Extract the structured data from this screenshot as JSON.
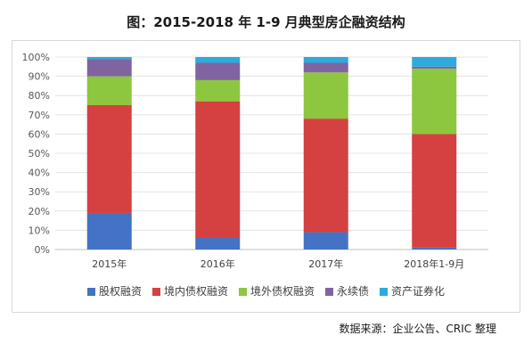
{
  "title": "图：2015-2018 年 1-9 月典型房企融资结构",
  "source": "数据来源：企业公告、CRIC 整理",
  "chart_data": {
    "type": "bar",
    "stacked": true,
    "categories": [
      "2015年",
      "2016年",
      "2017年",
      "2018年1-9月"
    ],
    "ylim": [
      0,
      100
    ],
    "yticks": [
      "0%",
      "10%",
      "20%",
      "30%",
      "40%",
      "50%",
      "60%",
      "70%",
      "80%",
      "90%",
      "100%"
    ],
    "grid": true,
    "legend_position": "bottom",
    "series": [
      {
        "name": "股权融资",
        "color": "#4472c4",
        "values": [
          19,
          6,
          9,
          1
        ]
      },
      {
        "name": "境内债权融资",
        "color": "#d54040",
        "values": [
          56,
          71,
          59,
          59
        ]
      },
      {
        "name": "境外债权融资",
        "color": "#8dc63f",
        "values": [
          15,
          11,
          24,
          34
        ]
      },
      {
        "name": "永续债",
        "color": "#8064a2",
        "values": [
          9,
          9,
          5,
          1
        ]
      },
      {
        "name": "资产证券化",
        "color": "#2eaadc",
        "values": [
          1,
          3,
          3,
          5
        ]
      }
    ]
  }
}
